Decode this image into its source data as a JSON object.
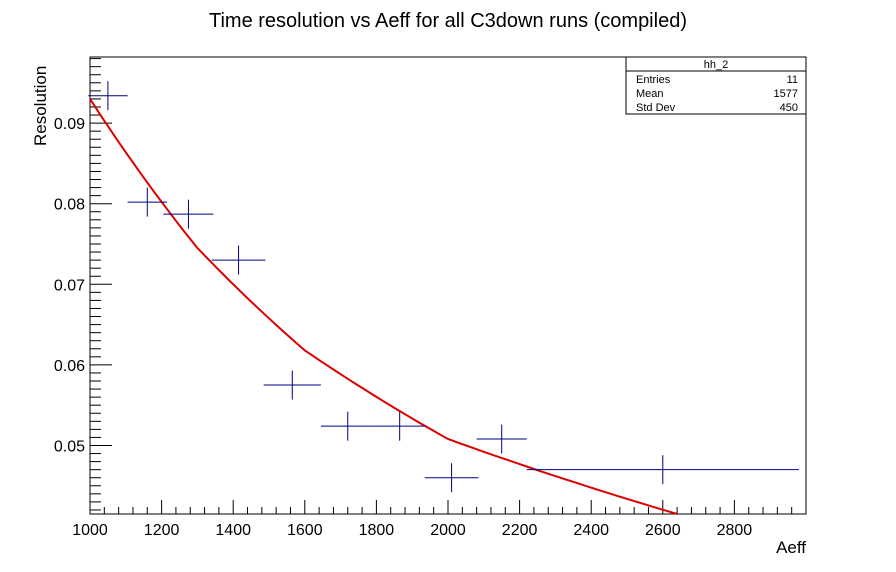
{
  "chart_data": {
    "type": "scatter",
    "title": "Time resolution vs Aeff for all C3down runs (compiled)",
    "xlabel": "Aeff",
    "ylabel": "Resolution",
    "xlim": [
      1000,
      3000
    ],
    "ylim": [
      0.0415,
      0.0982
    ],
    "x_ticks": [
      "1000",
      "1200",
      "1400",
      "1600",
      "1800",
      "2000",
      "2200",
      "2400",
      "2600",
      "2800"
    ],
    "y_ticks": [
      "0.05",
      "0.06",
      "0.07",
      "0.08",
      "0.09"
    ],
    "series": [
      {
        "marker_color": "#000080",
        "points": [
          {
            "x": 1050,
            "y": 0.0934,
            "xerr": 55,
            "yerr": 0.0018
          },
          {
            "x": 1160,
            "y": 0.0802,
            "xerr": 55,
            "yerr": 0.0018
          },
          {
            "x": 1275,
            "y": 0.0787,
            "xerr": 70,
            "yerr": 0.0018
          },
          {
            "x": 1415,
            "y": 0.073,
            "xerr": 75,
            "yerr": 0.0018
          },
          {
            "x": 1565,
            "y": 0.0575,
            "xerr": 80,
            "yerr": 0.0018
          },
          {
            "x": 1720,
            "y": 0.0524,
            "xerr": 75,
            "yerr": 0.0018
          },
          {
            "x": 1865,
            "y": 0.0524,
            "xerr": 70,
            "yerr": 0.0018
          },
          {
            "x": 2010,
            "y": 0.046,
            "xerr": 75,
            "yerr": 0.0018
          },
          {
            "x": 2150,
            "y": 0.0508,
            "xerr": 70,
            "yerr": 0.0018
          },
          {
            "x": 2600,
            "y": 0.047,
            "xerr": 380,
            "yerr": 0.0018
          }
        ]
      }
    ],
    "fit": {
      "color": "#dd0000",
      "model": "exponential",
      "points": [
        {
          "x": 1000,
          "y": 0.093
        },
        {
          "x": 1300,
          "y": 0.0745
        },
        {
          "x": 1600,
          "y": 0.0618
        },
        {
          "x": 2000,
          "y": 0.0508
        },
        {
          "x": 2640,
          "y": 0.0415
        }
      ]
    },
    "stats_box": {
      "name": "hh_2",
      "rows": [
        {
          "label": "Entries",
          "value": "11"
        },
        {
          "label": "Mean",
          "value": "1577"
        },
        {
          "label": "Std Dev",
          "value": "450"
        }
      ]
    },
    "grid": false,
    "legend": "top-right"
  }
}
